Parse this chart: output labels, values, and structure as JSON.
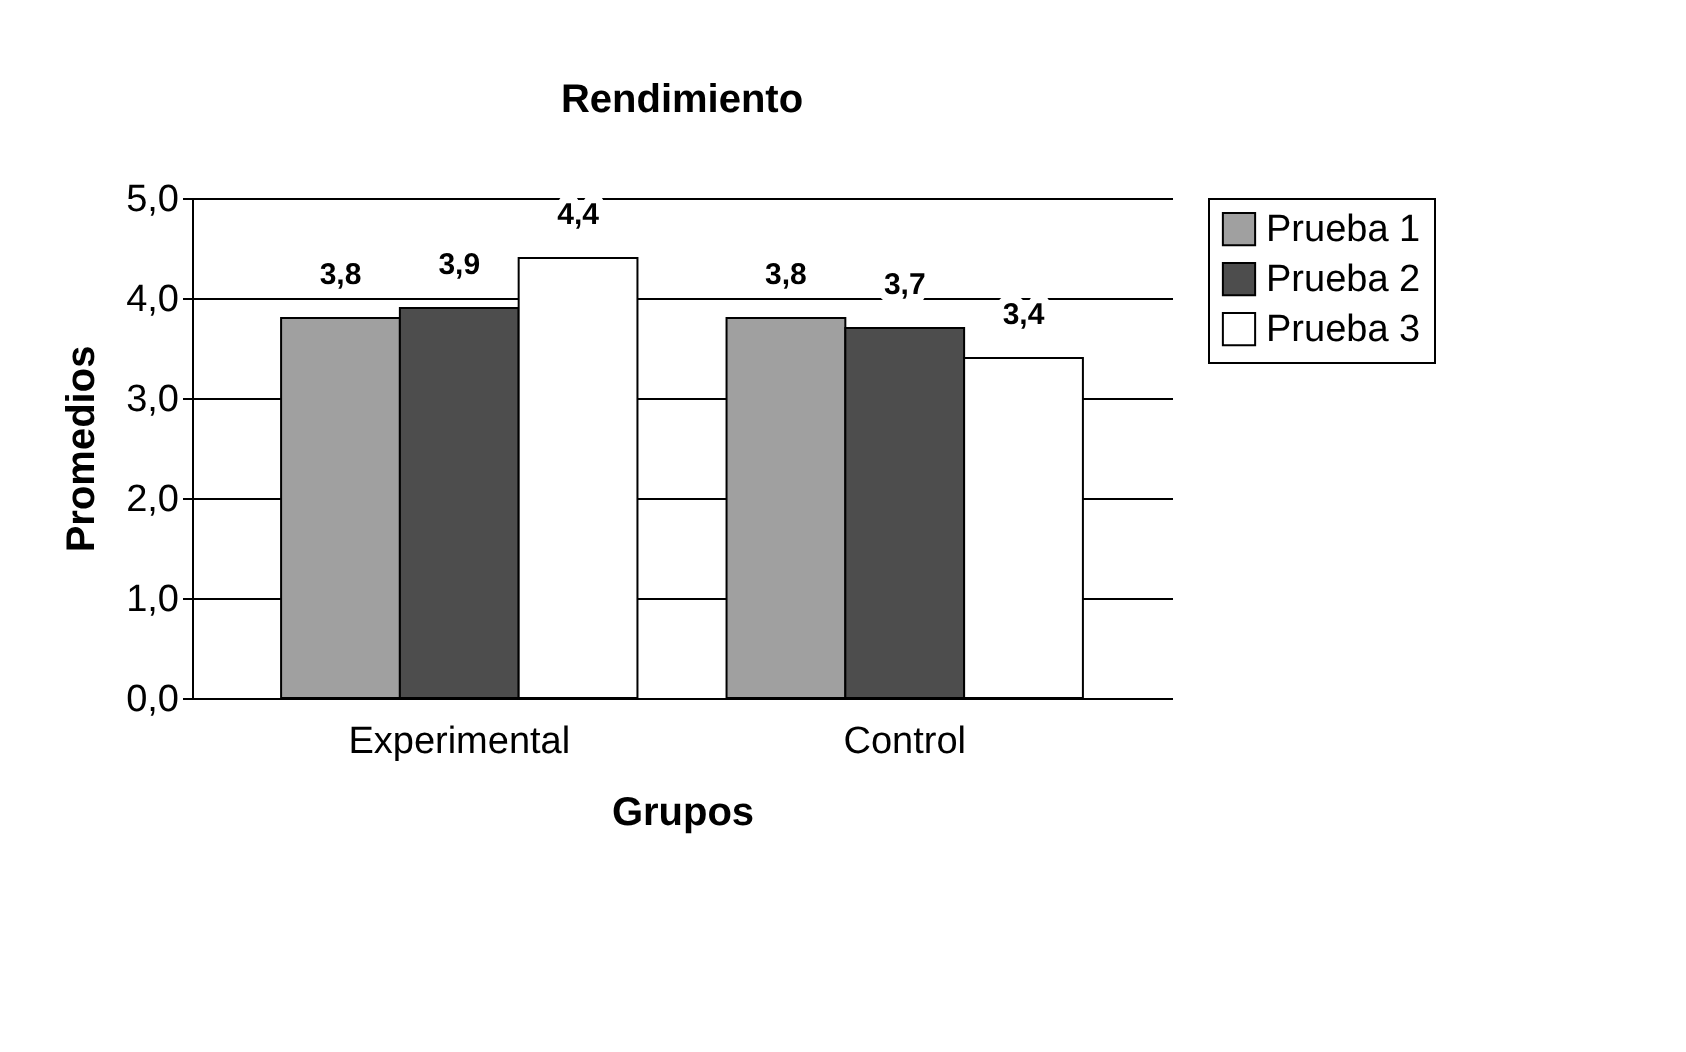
{
  "chart_data": {
    "type": "bar",
    "title": "Rendimiento",
    "xlabel": "Grupos",
    "ylabel": "Promedios",
    "categories": [
      "Experimental",
      "Control"
    ],
    "series": [
      {
        "name": "Prueba 1",
        "color": "#a0a0a0",
        "values": [
          3.8,
          3.8
        ],
        "value_labels": [
          "3,8",
          "3,8"
        ]
      },
      {
        "name": "Prueba 2",
        "color": "#4d4d4d",
        "values": [
          3.9,
          3.7
        ],
        "value_labels": [
          "3,9",
          "3,7"
        ]
      },
      {
        "name": "Prueba 3",
        "color": "#ffffff",
        "values": [
          4.4,
          3.4
        ],
        "value_labels": [
          "4,4",
          "3,4"
        ]
      }
    ],
    "ylim": [
      0,
      5
    ],
    "yticks": [
      {
        "value": 0,
        "label": "0,0"
      },
      {
        "value": 1,
        "label": "1,0"
      },
      {
        "value": 2,
        "label": "2,0"
      },
      {
        "value": 3,
        "label": "3,0"
      },
      {
        "value": 4,
        "label": "4,0"
      },
      {
        "value": 5,
        "label": "5,0"
      }
    ],
    "grid": "y",
    "legend": "right"
  }
}
